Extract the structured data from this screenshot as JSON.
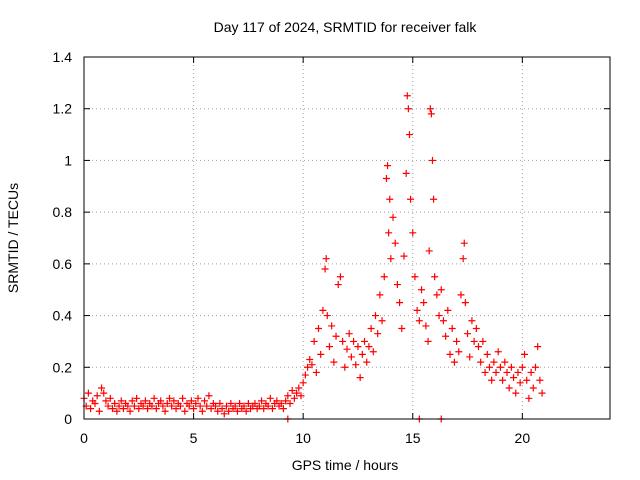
{
  "chart_data": {
    "type": "scatter",
    "title": "Day 117 of 2024, SRMTID for receiver falk",
    "xlabel": "GPS time / hours",
    "ylabel": "SRMTID / TECUs",
    "xlim": [
      0,
      24
    ],
    "ylim": [
      0,
      1.4
    ],
    "xticks": [
      "0",
      "5",
      "10",
      "15",
      "20"
    ],
    "xtick_values": [
      0,
      5,
      10,
      15,
      20
    ],
    "yticks": [
      "0",
      "0.2",
      "0.4",
      "0.6",
      "0.8",
      "1",
      "1.2",
      "1.4"
    ],
    "ytick_values": [
      0,
      0.2,
      0.4,
      0.6,
      0.8,
      1.0,
      1.2,
      1.4
    ],
    "grid": true,
    "marker": "plus",
    "series": [
      {
        "name": "SRMTID",
        "color": "#ff0000",
        "points": [
          [
            0.0,
            0.08
          ],
          [
            0.1,
            0.05
          ],
          [
            0.2,
            0.1
          ],
          [
            0.3,
            0.04
          ],
          [
            0.4,
            0.07
          ],
          [
            0.5,
            0.06
          ],
          [
            0.6,
            0.09
          ],
          [
            0.7,
            0.03
          ],
          [
            0.8,
            0.12
          ],
          [
            0.9,
            0.1
          ],
          [
            1.0,
            0.07
          ],
          [
            1.1,
            0.05
          ],
          [
            1.2,
            0.08
          ],
          [
            1.3,
            0.04
          ],
          [
            1.4,
            0.06
          ],
          [
            1.5,
            0.03
          ],
          [
            1.6,
            0.05
          ],
          [
            1.7,
            0.07
          ],
          [
            1.8,
            0.04
          ],
          [
            1.9,
            0.06
          ],
          [
            2.0,
            0.05
          ],
          [
            2.1,
            0.03
          ],
          [
            2.2,
            0.07
          ],
          [
            2.3,
            0.05
          ],
          [
            2.4,
            0.08
          ],
          [
            2.5,
            0.04
          ],
          [
            2.6,
            0.06
          ],
          [
            2.7,
            0.05
          ],
          [
            2.8,
            0.07
          ],
          [
            2.9,
            0.04
          ],
          [
            3.0,
            0.06
          ],
          [
            3.1,
            0.05
          ],
          [
            3.2,
            0.08
          ],
          [
            3.3,
            0.04
          ],
          [
            3.4,
            0.06
          ],
          [
            3.5,
            0.07
          ],
          [
            3.6,
            0.05
          ],
          [
            3.7,
            0.03
          ],
          [
            3.8,
            0.06
          ],
          [
            3.9,
            0.08
          ],
          [
            4.0,
            0.05
          ],
          [
            4.1,
            0.07
          ],
          [
            4.2,
            0.04
          ],
          [
            4.3,
            0.06
          ],
          [
            4.4,
            0.05
          ],
          [
            4.5,
            0.08
          ],
          [
            4.6,
            0.03
          ],
          [
            4.7,
            0.06
          ],
          [
            4.8,
            0.05
          ],
          [
            4.9,
            0.07
          ],
          [
            5.0,
            0.04
          ],
          [
            5.1,
            0.06
          ],
          [
            5.2,
            0.08
          ],
          [
            5.3,
            0.05
          ],
          [
            5.4,
            0.03
          ],
          [
            5.5,
            0.07
          ],
          [
            5.6,
            0.05
          ],
          [
            5.7,
            0.09
          ],
          [
            5.8,
            0.04
          ],
          [
            5.9,
            0.06
          ],
          [
            6.0,
            0.05
          ],
          [
            6.1,
            0.03
          ],
          [
            6.2,
            0.06
          ],
          [
            6.3,
            0.04
          ],
          [
            6.4,
            0.02
          ],
          [
            6.5,
            0.05
          ],
          [
            6.6,
            0.03
          ],
          [
            6.7,
            0.06
          ],
          [
            6.8,
            0.04
          ],
          [
            6.9,
            0.05
          ],
          [
            7.0,
            0.03
          ],
          [
            7.1,
            0.06
          ],
          [
            7.2,
            0.04
          ],
          [
            7.3,
            0.05
          ],
          [
            7.4,
            0.03
          ],
          [
            7.5,
            0.06
          ],
          [
            7.6,
            0.04
          ],
          [
            7.7,
            0.05
          ],
          [
            7.8,
            0.06
          ],
          [
            7.9,
            0.04
          ],
          [
            8.0,
            0.05
          ],
          [
            8.1,
            0.07
          ],
          [
            8.2,
            0.04
          ],
          [
            8.3,
            0.06
          ],
          [
            8.4,
            0.05
          ],
          [
            8.5,
            0.08
          ],
          [
            8.6,
            0.04
          ],
          [
            8.7,
            0.06
          ],
          [
            8.8,
            0.07
          ],
          [
            8.9,
            0.05
          ],
          [
            9.0,
            0.06
          ],
          [
            9.1,
            0.04
          ],
          [
            9.2,
            0.07
          ],
          [
            9.3,
            0.09
          ],
          [
            9.4,
            0.06
          ],
          [
            9.5,
            0.11
          ],
          [
            9.6,
            0.08
          ],
          [
            9.7,
            0.1
          ],
          [
            9.8,
            0.12
          ],
          [
            9.9,
            0.09
          ],
          [
            10.0,
            0.14
          ],
          [
            10.1,
            0.17
          ],
          [
            10.2,
            0.2
          ],
          [
            10.3,
            0.23
          ],
          [
            10.4,
            0.21
          ],
          [
            10.5,
            0.3
          ],
          [
            10.6,
            0.18
          ],
          [
            10.7,
            0.35
          ],
          [
            10.8,
            0.25
          ],
          [
            10.9,
            0.42
          ],
          [
            11.0,
            0.58
          ],
          [
            11.05,
            0.62
          ],
          [
            11.1,
            0.4
          ],
          [
            11.2,
            0.28
          ],
          [
            11.3,
            0.36
          ],
          [
            11.4,
            0.22
          ],
          [
            11.5,
            0.32
          ],
          [
            11.6,
            0.52
          ],
          [
            11.7,
            0.55
          ],
          [
            11.8,
            0.3
          ],
          [
            11.9,
            0.2
          ],
          [
            12.0,
            0.27
          ],
          [
            12.1,
            0.33
          ],
          [
            12.2,
            0.24
          ],
          [
            12.3,
            0.3
          ],
          [
            12.4,
            0.21
          ],
          [
            12.5,
            0.28
          ],
          [
            12.6,
            0.16
          ],
          [
            12.7,
            0.25
          ],
          [
            12.8,
            0.3
          ],
          [
            12.9,
            0.22
          ],
          [
            13.0,
            0.28
          ],
          [
            13.1,
            0.35
          ],
          [
            13.2,
            0.26
          ],
          [
            13.3,
            0.4
          ],
          [
            13.4,
            0.33
          ],
          [
            13.5,
            0.48
          ],
          [
            13.6,
            0.38
          ],
          [
            13.7,
            0.55
          ],
          [
            13.8,
            0.93
          ],
          [
            13.85,
            0.98
          ],
          [
            13.9,
            0.72
          ],
          [
            13.95,
            0.85
          ],
          [
            14.0,
            0.62
          ],
          [
            14.1,
            0.78
          ],
          [
            14.2,
            0.68
          ],
          [
            14.3,
            0.52
          ],
          [
            14.4,
            0.45
          ],
          [
            14.5,
            0.35
          ],
          [
            14.6,
            0.63
          ],
          [
            14.7,
            0.95
          ],
          [
            14.75,
            1.25
          ],
          [
            14.8,
            1.2
          ],
          [
            14.85,
            1.1
          ],
          [
            14.9,
            0.85
          ],
          [
            15.0,
            0.72
          ],
          [
            15.1,
            0.55
          ],
          [
            15.2,
            0.42
          ],
          [
            15.3,
            0.38
          ],
          [
            15.4,
            0.5
          ],
          [
            15.5,
            0.45
          ],
          [
            15.6,
            0.36
          ],
          [
            15.7,
            0.3
          ],
          [
            15.75,
            0.65
          ],
          [
            15.8,
            1.2
          ],
          [
            15.85,
            1.18
          ],
          [
            15.9,
            1.0
          ],
          [
            15.95,
            0.85
          ],
          [
            16.0,
            0.55
          ],
          [
            16.1,
            0.48
          ],
          [
            16.2,
            0.4
          ],
          [
            16.3,
            0.5
          ],
          [
            16.4,
            0.38
          ],
          [
            16.5,
            0.32
          ],
          [
            16.6,
            0.42
          ],
          [
            16.7,
            0.25
          ],
          [
            16.8,
            0.35
          ],
          [
            16.9,
            0.22
          ],
          [
            17.0,
            0.3
          ],
          [
            17.1,
            0.26
          ],
          [
            17.2,
            0.48
          ],
          [
            17.3,
            0.62
          ],
          [
            17.35,
            0.68
          ],
          [
            17.4,
            0.45
          ],
          [
            17.5,
            0.33
          ],
          [
            17.6,
            0.24
          ],
          [
            17.7,
            0.38
          ],
          [
            17.8,
            0.3
          ],
          [
            17.9,
            0.35
          ],
          [
            18.0,
            0.28
          ],
          [
            18.1,
            0.22
          ],
          [
            18.2,
            0.3
          ],
          [
            18.3,
            0.18
          ],
          [
            18.4,
            0.25
          ],
          [
            18.5,
            0.2
          ],
          [
            18.6,
            0.15
          ],
          [
            18.7,
            0.22
          ],
          [
            18.8,
            0.18
          ],
          [
            18.9,
            0.26
          ],
          [
            19.0,
            0.2
          ],
          [
            19.1,
            0.15
          ],
          [
            19.2,
            0.22
          ],
          [
            19.3,
            0.18
          ],
          [
            19.4,
            0.12
          ],
          [
            19.5,
            0.2
          ],
          [
            19.6,
            0.16
          ],
          [
            19.7,
            0.1
          ],
          [
            19.8,
            0.18
          ],
          [
            19.9,
            0.14
          ],
          [
            20.0,
            0.2
          ],
          [
            20.1,
            0.25
          ],
          [
            20.2,
            0.15
          ],
          [
            20.3,
            0.08
          ],
          [
            20.4,
            0.18
          ],
          [
            20.5,
            0.12
          ],
          [
            20.6,
            0.2
          ],
          [
            20.7,
            0.28
          ],
          [
            20.8,
            0.15
          ],
          [
            20.9,
            0.1
          ],
          [
            15.3,
            0.0
          ],
          [
            16.3,
            0.0
          ],
          [
            9.3,
            0.0
          ]
        ]
      }
    ]
  }
}
